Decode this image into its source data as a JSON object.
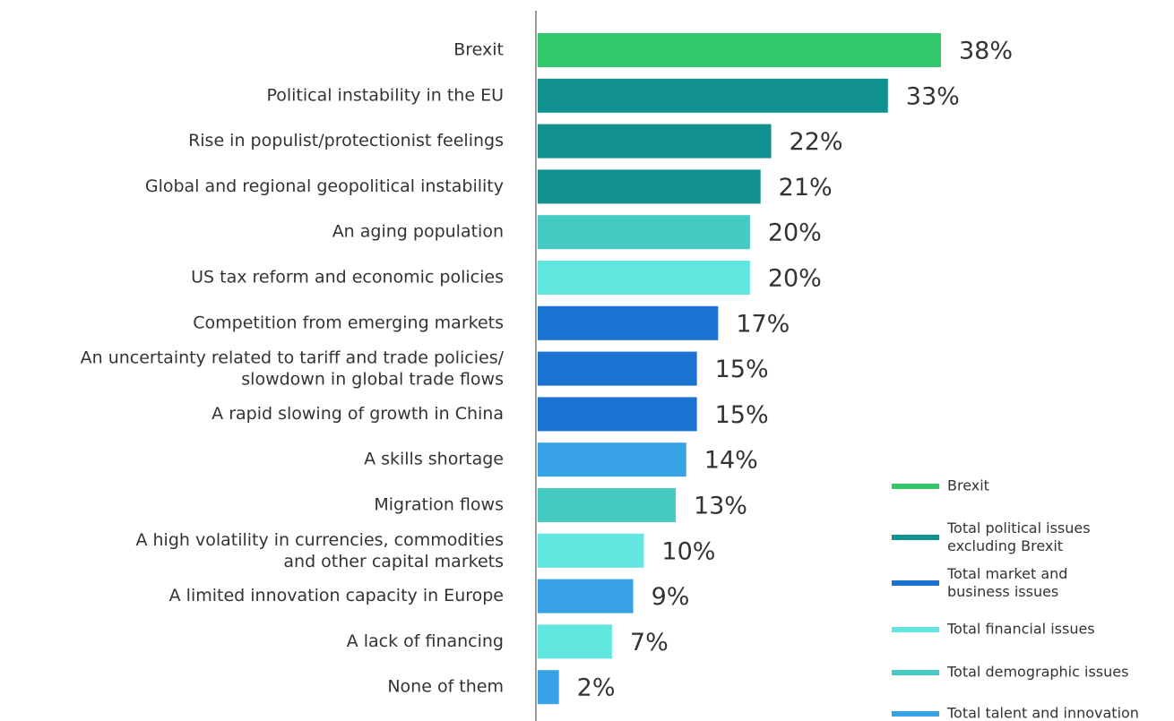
{
  "chart_data": {
    "type": "bar",
    "orientation": "horizontal",
    "categories": [
      "Brexit",
      "Political instability in the EU",
      "Rise in populist/protectionist feelings",
      "Global and regional geopolitical instability",
      "An aging population",
      "US tax reform and economic policies",
      "Competition from emerging markets",
      "An uncertainty related to tariff and trade policies/\nslowdown in global trade flows",
      "A rapid slowing of growth in China",
      "A skills shortage",
      "Migration flows",
      "A high volatility in currencies, commodities\nand other capital markets",
      "A limited innovation capacity in Europe",
      "A lack of financing",
      "None of them"
    ],
    "values": [
      38,
      33,
      22,
      21,
      20,
      20,
      17,
      15,
      15,
      14,
      13,
      10,
      9,
      7,
      2
    ],
    "value_labels": [
      "38%",
      "33%",
      "22%",
      "21%",
      "20%",
      "20%",
      "17%",
      "15%",
      "15%",
      "14%",
      "13%",
      "10%",
      "9%",
      "7%",
      "2%"
    ],
    "colors": [
      "#33c96b",
      "#10908f",
      "#10908f",
      "#10908f",
      "#45cbc4",
      "#62e6e0",
      "#1a73d0",
      "#1a73d0",
      "#1a73d0",
      "#37a3e6",
      "#45cbc4",
      "#62e6e0",
      "#37a3e6",
      "#62e6e0",
      "#37a3e6"
    ],
    "xlim": [
      0,
      38
    ],
    "legend": [
      {
        "name": "Brexit",
        "color": "#33c96b"
      },
      {
        "name": "Total political issues\nexcluding Brexit",
        "color": "#10908f"
      },
      {
        "name": "Total market and\nbusiness issues",
        "color": "#1a73d0"
      },
      {
        "name": "Total financial issues",
        "color": "#62e6e0"
      },
      {
        "name": "Total demographic issues",
        "color": "#45cbc4"
      },
      {
        "name": "Total talent and innovation",
        "color": "#37a3e6"
      }
    ]
  }
}
